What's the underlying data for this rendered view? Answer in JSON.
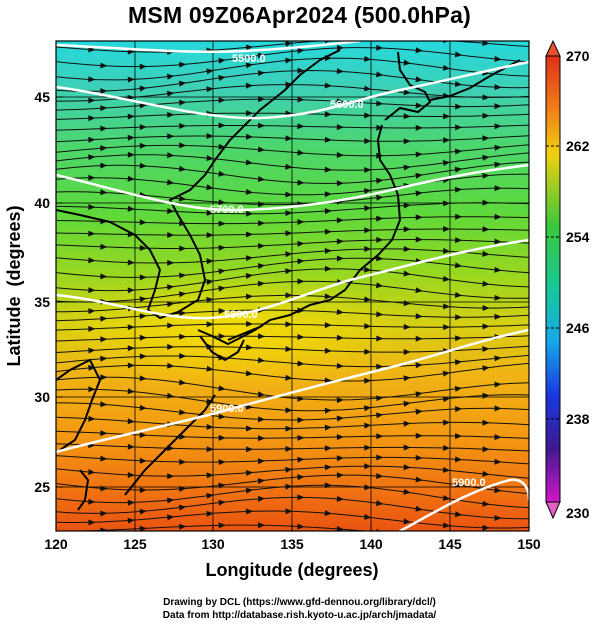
{
  "title": "MSM 09Z06Apr2024 (500.0hPa)",
  "axes": {
    "xlabel": "Longitude (degrees)",
    "ylabel": "Latitude  (degrees)",
    "x_ticks": [
      "120",
      "125",
      "130",
      "135",
      "140",
      "145",
      "150"
    ],
    "y_ticks": [
      "25",
      "30",
      "35",
      "40",
      "45"
    ]
  },
  "colorbar": {
    "ticks": [
      "270",
      "262",
      "254",
      "246",
      "238",
      "230"
    ]
  },
  "contours": {
    "c1": "5500.0",
    "c2": "5600.0",
    "c3": "5700.0",
    "c4": "5800.0",
    "c5": "5900.0"
  },
  "footer": {
    "line1": "Drawing by DCL (https://www.gfd-dennou.org/library/dcl/)",
    "line2": "Data from http://database.rish.kyoto-u.ac.jp/arch/jmadata/"
  },
  "map": {
    "lon_range": [
      120,
      150
    ],
    "lat_range": [
      22.5,
      47.5
    ],
    "temperature_range": [
      230,
      270
    ],
    "grid": true,
    "field": "temperature",
    "vectors": "wind streamlines"
  }
}
